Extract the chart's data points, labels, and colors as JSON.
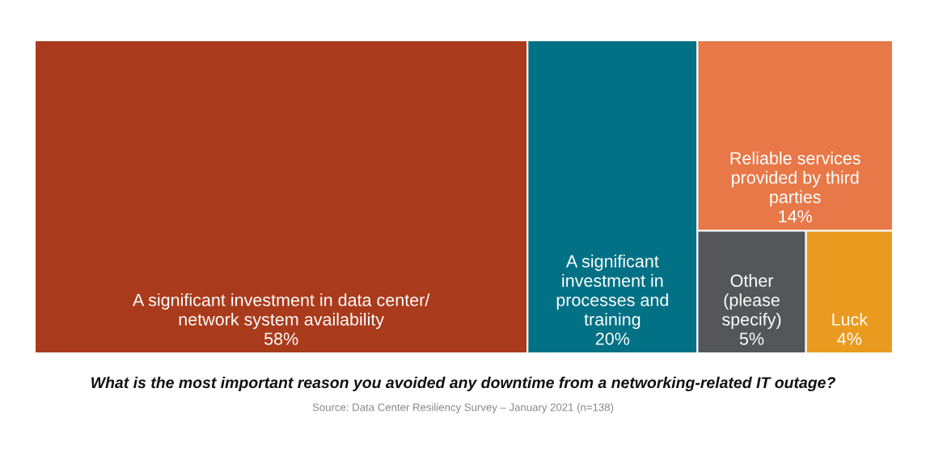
{
  "chart_data": {
    "type": "other",
    "title": "What is the most important reason you avoided any downtime from a networking-related IT outage?",
    "categories": [
      "A significant investment in data center/\nnetwork system availability",
      "A significant\ninvestment in\nprocesses and\ntraining",
      "Reliable services\nprovided by third\nparties",
      "Other\n(please\nspecify)",
      "Luck"
    ],
    "values": [
      58,
      20,
      14,
      5,
      4
    ],
    "value_labels": [
      "58%",
      "20%",
      "14%",
      "5%",
      "4%"
    ],
    "colors": [
      "#a93b1c",
      "#037185",
      "#e87848",
      "#54565a",
      "#ea9a1f"
    ],
    "annotations": [
      "Source: Data Center Resiliency Survey – January 2021 (n=138)"
    ]
  }
}
